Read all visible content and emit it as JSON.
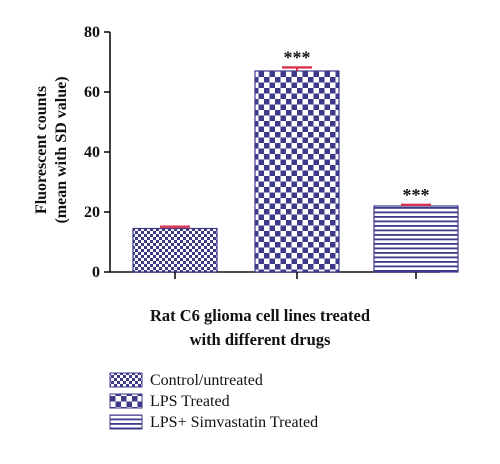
{
  "chart_data": {
    "type": "bar",
    "categories": [
      "Control/untreated",
      "LPS Treated",
      "LPS+ Simvastatin Treated"
    ],
    "values": [
      14.5,
      67,
      22
    ],
    "errors": [
      0.6,
      1.2,
      0.4
    ],
    "annotations": [
      "",
      "***",
      "***"
    ],
    "ylabel_lines": [
      "Fluorescent counts",
      "(mean with SD value)"
    ],
    "xlabel_lines": [
      "Rat C6 glioma cell lines treated",
      "with different drugs"
    ],
    "ylim": [
      0,
      80
    ],
    "yticks": [
      0,
      20,
      40,
      60,
      80
    ],
    "grid": false,
    "legend": "bottom-left",
    "colors": {
      "bar_fill": "#3d3a8a",
      "bar_background": "#ffffff",
      "error_bar": "#d9334f",
      "axis": "#111111"
    },
    "patterns": [
      "fine-checker",
      "coarse-checker",
      "horizontal-lines"
    ]
  }
}
